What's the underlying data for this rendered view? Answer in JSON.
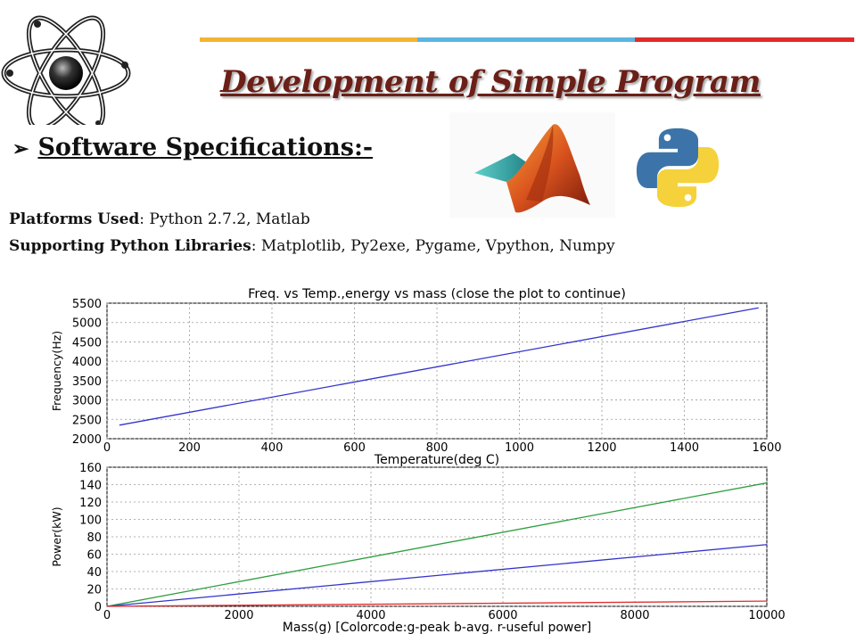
{
  "slide": {
    "title": "Development of Simple Program",
    "heading": "Software Specifications:-",
    "platforms_label": "Platforms Used",
    "platforms_value": ": Python 2.7.2, Matlab",
    "libraries_label": "Supporting Python Libraries",
    "libraries_value": ": Matplotlib, Py2exe, Pygame, Vpython, Numpy",
    "bar_colors": [
      "#f2b533",
      "#5bb5e0",
      "#e02b2b"
    ],
    "icons": [
      "atom-logo-icon",
      "matlab-logo-icon",
      "python-logo-icon"
    ]
  },
  "chart_data": [
    {
      "type": "line",
      "title": "Freq. vs Temp.,energy vs mass (close the plot to continue)",
      "xlabel": "Temperature(deg C)",
      "ylabel": "Frequency(Hz)",
      "xlim": [
        0,
        1600
      ],
      "ylim": [
        2000,
        5500
      ],
      "xticks": [
        0,
        200,
        400,
        600,
        800,
        1000,
        1200,
        1400,
        1600
      ],
      "yticks": [
        2000,
        2500,
        3000,
        3500,
        4000,
        4500,
        5000,
        5500
      ],
      "grid": true,
      "series": [
        {
          "color": "#3333cc",
          "x": [
            30,
            1580
          ],
          "y": [
            2350,
            5380
          ]
        }
      ]
    },
    {
      "type": "line",
      "title": "",
      "xlabel": "Mass(g) [Colorcode:g-peak b-avg. r-useful power]",
      "ylabel": "Power(kW)",
      "xlim": [
        0,
        10000
      ],
      "ylim": [
        0,
        160
      ],
      "xticks": [
        0,
        2000,
        4000,
        6000,
        8000,
        10000
      ],
      "yticks": [
        0,
        20,
        40,
        60,
        80,
        100,
        120,
        140,
        160
      ],
      "grid": true,
      "series": [
        {
          "color": "#2e9e3e",
          "x": [
            0,
            10000
          ],
          "y": [
            0,
            142
          ]
        },
        {
          "color": "#3333cc",
          "x": [
            0,
            10000
          ],
          "y": [
            0,
            71
          ]
        },
        {
          "color": "#e03030",
          "x": [
            0,
            10000
          ],
          "y": [
            0,
            6
          ]
        }
      ]
    }
  ]
}
